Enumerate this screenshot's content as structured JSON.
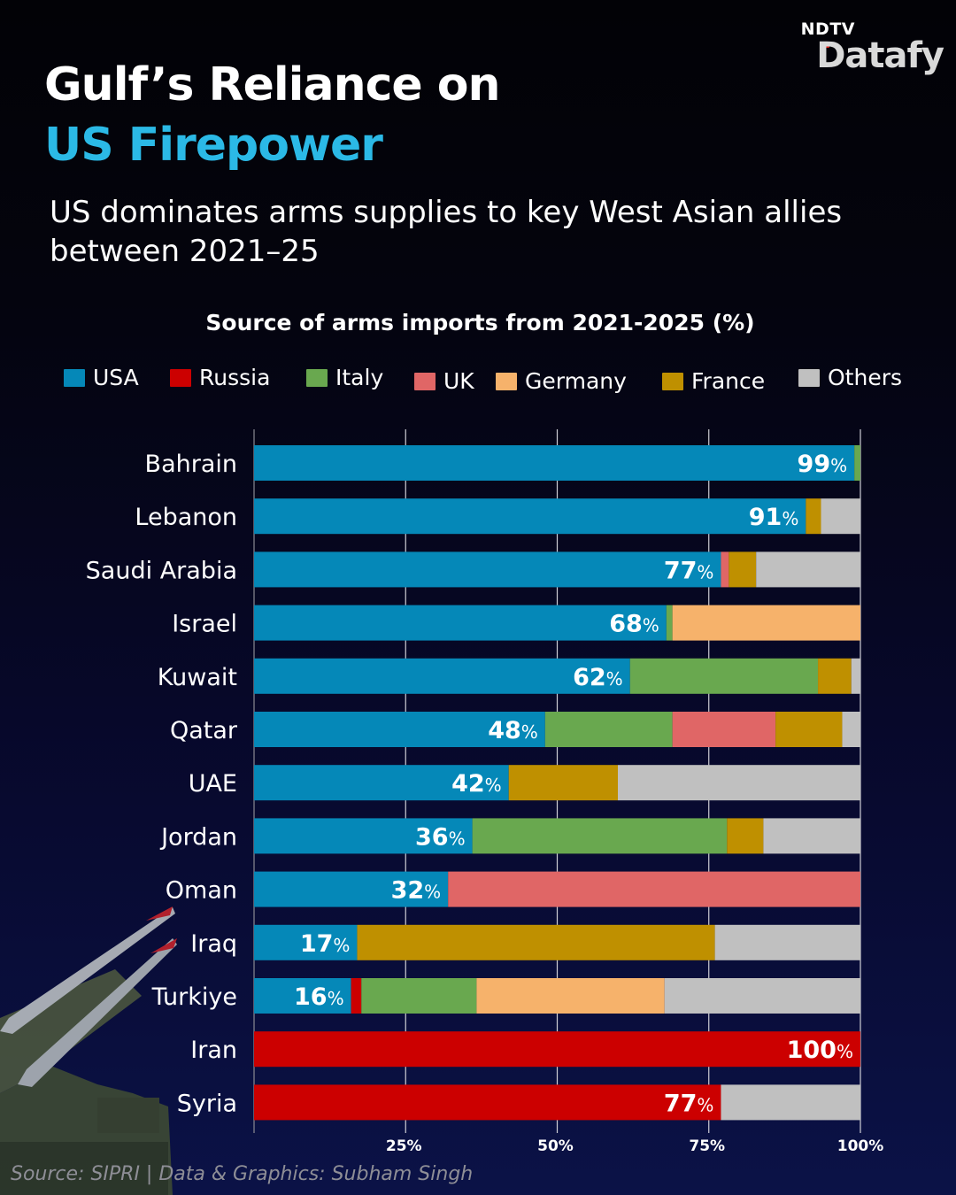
{
  "brand": {
    "top": "NDTV",
    "main": "Datafy"
  },
  "header": {
    "title_line1": "Gulf’s Reliance on",
    "title_line2": "US Firepower",
    "subtitle": "US dominates arms supplies to key West Asian allies between 2021–25"
  },
  "footer": {
    "source": "Source: SIPRI | Data & Graphics: Subham Singh"
  },
  "colors": {
    "USA": "#0588b8",
    "Russia": "#cc0000",
    "Italy": "#69a84f",
    "UK": "#e06666",
    "Germany": "#f6b26b",
    "France": "#bf9000",
    "Others": "#c0c0c0",
    "title_accent": "#2bb9e6"
  },
  "chart_data": {
    "type": "bar",
    "orientation": "horizontal",
    "stacked": true,
    "title": "Source of arms imports from 2021-2025 (%)",
    "xlabel": "",
    "ylabel": "",
    "xlim": [
      0,
      100
    ],
    "x_ticks": [
      25,
      50,
      75,
      100
    ],
    "x_tick_labels": [
      "25%",
      "50%",
      "75%",
      "100%"
    ],
    "grid": true,
    "legend": [
      "USA",
      "Russia",
      "Italy",
      "UK",
      "Germany",
      "France",
      "Others"
    ],
    "legend_position": "top",
    "categories": [
      "Bahrain",
      "Lebanon",
      "Saudi Arabia",
      "Israel",
      "Kuwait",
      "Qatar",
      "UAE",
      "Jordan",
      "Oman",
      "Iraq",
      "Turkiye",
      "Iran",
      "Syria"
    ],
    "series": [
      {
        "name": "USA",
        "values": [
          99,
          91,
          77,
          68,
          62,
          48,
          42,
          36,
          32,
          17,
          16,
          0,
          0
        ]
      },
      {
        "name": "Russia",
        "values": [
          0,
          0,
          0,
          0,
          0,
          0,
          0,
          0,
          0,
          0,
          1.7,
          100,
          77
        ]
      },
      {
        "name": "Italy",
        "values": [
          1,
          0,
          0,
          1,
          31,
          21,
          0,
          42,
          0,
          0,
          19,
          0,
          0
        ]
      },
      {
        "name": "UK",
        "values": [
          0,
          0,
          1.3,
          0,
          0,
          17,
          0,
          0,
          68,
          0,
          0,
          0,
          0
        ]
      },
      {
        "name": "Germany",
        "values": [
          0,
          0,
          0,
          31,
          0,
          0,
          0,
          0,
          0,
          0,
          31,
          0,
          0
        ]
      },
      {
        "name": "France",
        "values": [
          0,
          2.5,
          4.5,
          0,
          5.5,
          11,
          18,
          6,
          0,
          59,
          0,
          0,
          0
        ]
      },
      {
        "name": "Others",
        "values": [
          0,
          6.5,
          17.2,
          0,
          1.5,
          3,
          40,
          16,
          0,
          24,
          32.3,
          0,
          23
        ]
      }
    ],
    "bar_segment_order": [
      "USA",
      "Russia",
      "Italy",
      "UK",
      "Germany",
      "France",
      "Others"
    ],
    "labels": [
      {
        "value": "99",
        "unit": "%"
      },
      {
        "value": "91",
        "unit": "%"
      },
      {
        "value": "77",
        "unit": "%"
      },
      {
        "value": "68",
        "unit": "%"
      },
      {
        "value": "62",
        "unit": "%"
      },
      {
        "value": "48",
        "unit": "%"
      },
      {
        "value": "42",
        "unit": "%"
      },
      {
        "value": "36",
        "unit": "%"
      },
      {
        "value": "32",
        "unit": "%"
      },
      {
        "value": "17",
        "unit": "%"
      },
      {
        "value": "16",
        "unit": "%"
      },
      {
        "value": "100",
        "unit": "%"
      },
      {
        "value": "77",
        "unit": "%"
      }
    ]
  }
}
